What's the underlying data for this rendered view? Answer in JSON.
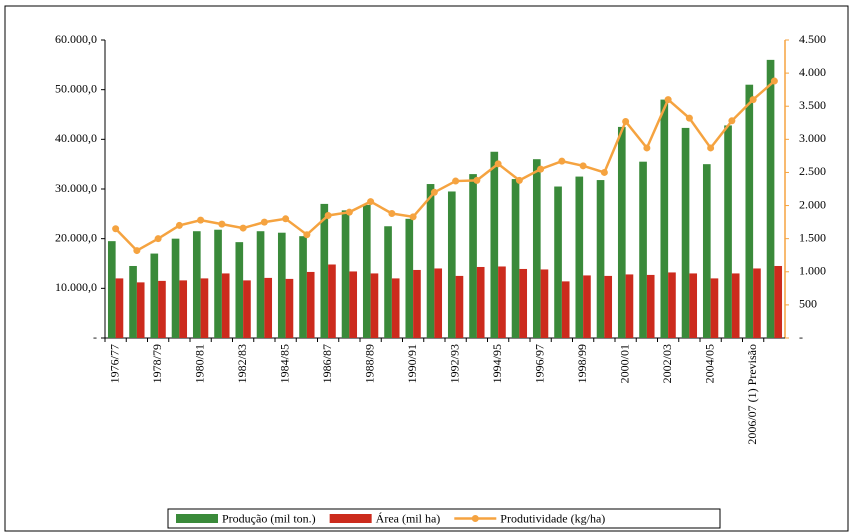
{
  "chart_data": {
    "type": "bar",
    "categories": [
      "1976/77",
      null,
      "1978/79",
      null,
      "1980/81",
      null,
      "1982/83",
      null,
      "1984/85",
      null,
      "1986/87",
      null,
      "1988/89",
      null,
      "1990/91",
      null,
      "1992/93",
      null,
      "1994/95",
      null,
      "1996/97",
      null,
      "1998/99",
      null,
      "2000/01",
      null,
      "2002/03",
      null,
      "2004/05",
      null,
      "2006/07 (1) Previsão",
      null
    ],
    "series": [
      {
        "name": "Produção (mil ton.)",
        "color": "#3a8a3a",
        "values": [
          19500,
          14500,
          17000,
          20000,
          21500,
          21800,
          19300,
          21500,
          21200,
          20500,
          27000,
          25700,
          26800,
          22500,
          24000,
          31000,
          29500,
          33000,
          37500,
          32000,
          36000,
          30500,
          32500,
          31800,
          42500,
          35500,
          48000,
          42300,
          35000,
          42800,
          51000,
          56000
        ]
      },
      {
        "name": "Área (mil ha)",
        "color": "#cc2b1d",
        "values": [
          12000,
          11200,
          11500,
          11600,
          12000,
          13000,
          11600,
          12100,
          11900,
          13300,
          14800,
          13400,
          13000,
          12000,
          13700,
          14000,
          12500,
          14300,
          14400,
          13900,
          13800,
          11400,
          12600,
          12500,
          12800,
          12700,
          13200,
          13000,
          12000,
          13000,
          14000,
          14500
        ]
      },
      {
        "name": "Produtividade (kg/ha)",
        "color": "#f5a340",
        "type": "line",
        "axis": "y2",
        "values": [
          1650,
          1320,
          1500,
          1700,
          1780,
          1720,
          1660,
          1750,
          1800,
          1560,
          1850,
          1900,
          2060,
          1880,
          1830,
          2200,
          2370,
          2380,
          2630,
          2380,
          2550,
          2670,
          2600,
          2500,
          3270,
          2870,
          3600,
          3320,
          2870,
          3280,
          3600,
          3880
        ]
      }
    ],
    "ylim": [
      0,
      60000
    ],
    "yticks": [
      {
        "value": 0,
        "label": "-"
      },
      {
        "value": 10000,
        "label": "10.000,0"
      },
      {
        "value": 20000,
        "label": "20.000,0"
      },
      {
        "value": 30000,
        "label": "30.000,0"
      },
      {
        "value": 40000,
        "label": "40.000,0"
      },
      {
        "value": 50000,
        "label": "50.000,0"
      },
      {
        "value": 60000,
        "label": "60.000,0"
      }
    ],
    "y2lim": [
      0,
      4500
    ],
    "y2ticks": [
      {
        "value": 0,
        "label": "-"
      },
      500,
      {
        "value": 1000,
        "label": "1.000"
      },
      {
        "value": 1500,
        "label": "1.500"
      },
      {
        "value": 2000,
        "label": "2.000"
      },
      {
        "value": 2500,
        "label": "2.500"
      },
      {
        "value": 3000,
        "label": "3.000"
      },
      {
        "value": 3500,
        "label": "3.500"
      },
      {
        "value": 4000,
        "label": "4.000"
      },
      {
        "value": 4500,
        "label": "4.500"
      }
    ],
    "y2color": "#f5a340",
    "legend": "bottom"
  }
}
